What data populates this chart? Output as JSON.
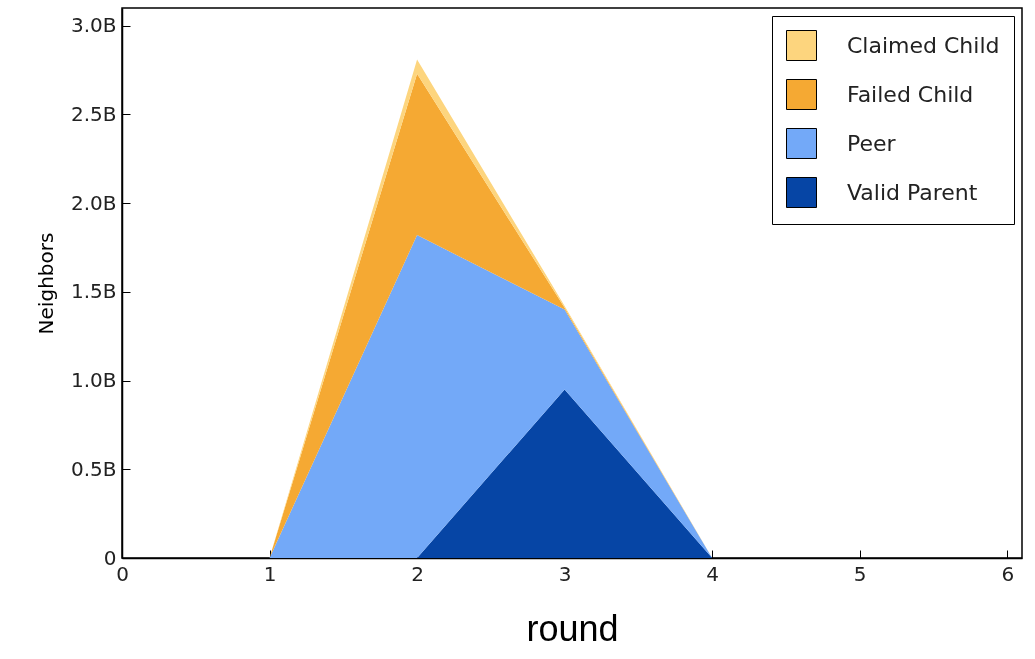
{
  "chart_data": {
    "type": "area",
    "stacked": true,
    "xlabel": "round",
    "ylabel": "Neighbors",
    "x": [
      0,
      1,
      2,
      3,
      4,
      5,
      6
    ],
    "series": [
      {
        "name": "Valid Parent",
        "color": "#0645a5",
        "values": [
          0,
          0,
          0,
          0.95,
          0,
          0,
          0
        ]
      },
      {
        "name": "Peer",
        "color": "#73a9f8",
        "values": [
          0,
          0,
          1.82,
          0.45,
          0,
          0,
          0
        ]
      },
      {
        "name": "Failed Child",
        "color": "#f5a933",
        "values": [
          0,
          0,
          0.91,
          0.01,
          0,
          0,
          0
        ]
      },
      {
        "name": "Claimed Child",
        "color": "#fdd57e",
        "values": [
          0,
          0,
          0.08,
          0.01,
          0,
          0,
          0
        ]
      }
    ],
    "xlim": [
      0,
      6.1
    ],
    "xticks": [
      0,
      1,
      2,
      3,
      4,
      5,
      6
    ],
    "ylim": [
      0,
      3.1
    ],
    "yticks": [
      0,
      {
        "value": 0.5,
        "label": "0.5B"
      },
      {
        "value": 1,
        "label": "1.0B"
      },
      {
        "value": 1.5,
        "label": "1.5B"
      },
      {
        "value": 2,
        "label": "2.0B"
      },
      {
        "value": 2.5,
        "label": "2.5B"
      },
      {
        "value": 3,
        "label": "3.0B"
      }
    ],
    "grid": false,
    "legend": "top right"
  }
}
